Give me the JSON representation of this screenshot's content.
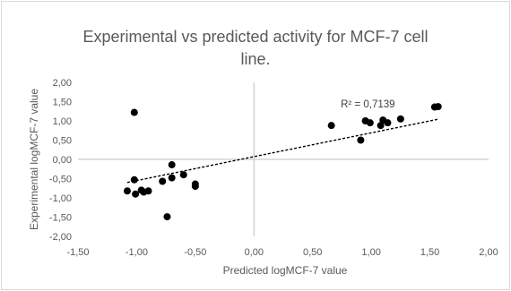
{
  "chart_data": {
    "type": "scatter",
    "title_lines": [
      "Experimental vs predicted activity for MCF-7 cell",
      "line."
    ],
    "xlabel": "Predicted logMCF-7 value",
    "ylabel": "Experimental logMCF-7 value",
    "xlim": [
      -1.5,
      2.0
    ],
    "ylim": [
      -2.0,
      2.0
    ],
    "x_ticks": [
      -1.5,
      -1.0,
      -0.5,
      0.0,
      0.5,
      1.0,
      1.5,
      2.0
    ],
    "y_ticks": [
      -2.0,
      -1.5,
      -1.0,
      -0.5,
      0.0,
      0.5,
      1.0,
      1.5,
      2.0
    ],
    "x_tick_labels": [
      "-1,50",
      "-1,00",
      "-0,50",
      "0,00",
      "0,50",
      "1,00",
      "1,50",
      "2,00"
    ],
    "y_tick_labels": [
      "-2,00",
      "-1,50",
      "-1,00",
      "-0,50",
      "0,00",
      "0,50",
      "1,00",
      "1,50",
      "2,00"
    ],
    "grid": false,
    "marker_color": "#000000",
    "trendline": {
      "style": "dashed",
      "color": "#000000",
      "slope": 0.62,
      "intercept": 0.07,
      "r2_label": "R² = 0,7139"
    },
    "points": [
      {
        "x": -1.08,
        "y": -0.82
      },
      {
        "x": -1.02,
        "y": 1.22
      },
      {
        "x": -1.02,
        "y": -0.53
      },
      {
        "x": -1.01,
        "y": -0.9
      },
      {
        "x": -0.96,
        "y": -0.8
      },
      {
        "x": -0.94,
        "y": -0.85
      },
      {
        "x": -0.9,
        "y": -0.82
      },
      {
        "x": -0.78,
        "y": -0.57
      },
      {
        "x": -0.74,
        "y": -1.49
      },
      {
        "x": -0.7,
        "y": -0.14
      },
      {
        "x": -0.7,
        "y": -0.48
      },
      {
        "x": -0.6,
        "y": -0.4
      },
      {
        "x": -0.5,
        "y": -0.64
      },
      {
        "x": -0.5,
        "y": -0.7
      },
      {
        "x": 0.66,
        "y": 0.88
      },
      {
        "x": 0.91,
        "y": 0.5
      },
      {
        "x": 0.95,
        "y": 1.0
      },
      {
        "x": 0.99,
        "y": 0.95
      },
      {
        "x": 1.08,
        "y": 0.88
      },
      {
        "x": 1.1,
        "y": 1.02
      },
      {
        "x": 1.14,
        "y": 0.95
      },
      {
        "x": 1.25,
        "y": 1.05
      },
      {
        "x": 1.54,
        "y": 1.36
      },
      {
        "x": 1.57,
        "y": 1.37
      }
    ]
  }
}
